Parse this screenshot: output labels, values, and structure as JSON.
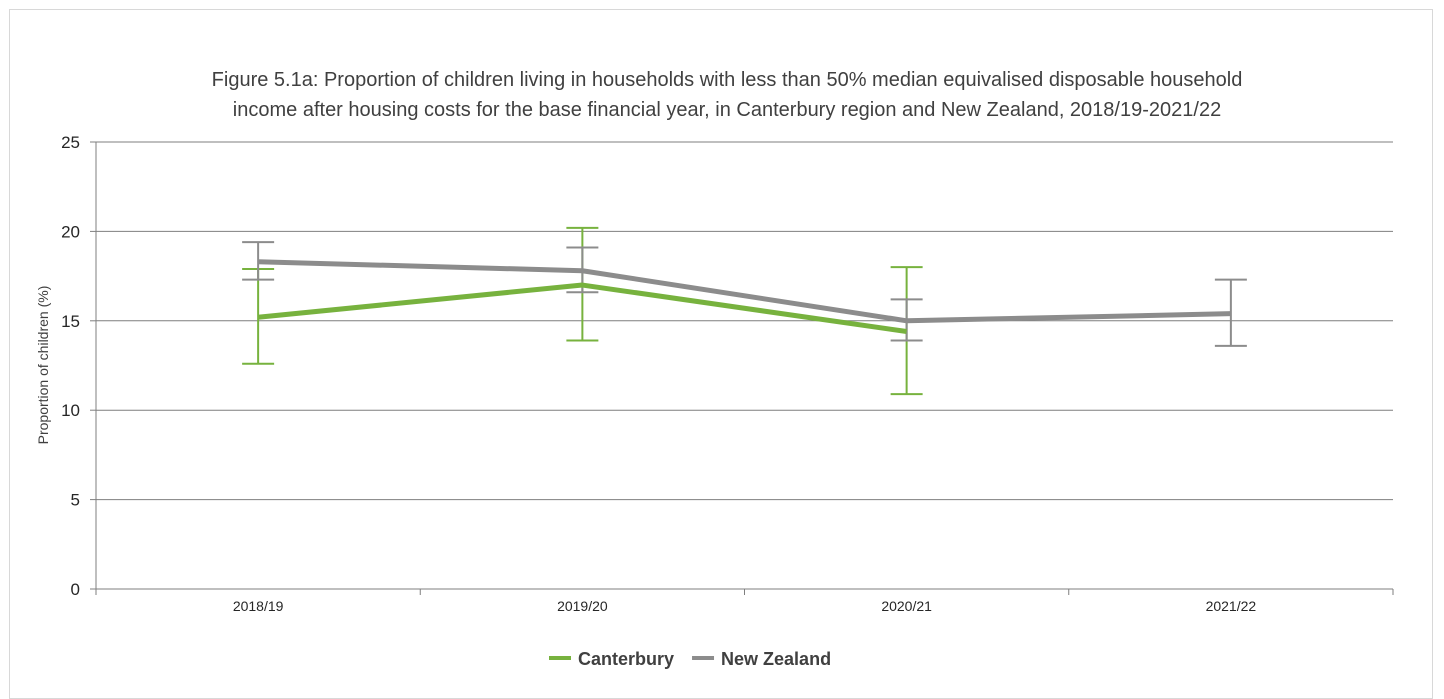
{
  "colors": {
    "canterbury": "#77b23e",
    "new_zealand": "#8c8c8c",
    "grid": "#7f7f7f",
    "axis": "#7f7f7f"
  },
  "chart_data": {
    "type": "line",
    "title_line1": "Figure 5.1a: Proportion of children living in households with less than 50% median equivalised disposable household",
    "title_line2": "income after housing costs for the base financial year, in Canterbury region and New Zealand, 2018/19-2021/22",
    "xlabel": "",
    "ylabel": "Proportion of children (%)",
    "ylim": [
      0,
      25
    ],
    "yticks": [
      0,
      5,
      10,
      15,
      20,
      25
    ],
    "categories": [
      "2018/19",
      "2019/20",
      "2020/21",
      "2021/22"
    ],
    "grid": true,
    "legend_position": "bottom",
    "series": [
      {
        "name": "Canterbury",
        "color_key": "canterbury",
        "values": [
          15.2,
          17.0,
          14.4,
          null
        ],
        "ci_low": [
          12.6,
          13.9,
          10.9,
          null
        ],
        "ci_high": [
          17.9,
          20.2,
          18.0,
          null
        ]
      },
      {
        "name": "New Zealand",
        "color_key": "new_zealand",
        "values": [
          18.3,
          17.8,
          15.0,
          15.4
        ],
        "ci_low": [
          17.3,
          16.6,
          13.9,
          13.6
        ],
        "ci_high": [
          19.4,
          19.1,
          16.2,
          17.3
        ]
      }
    ]
  }
}
